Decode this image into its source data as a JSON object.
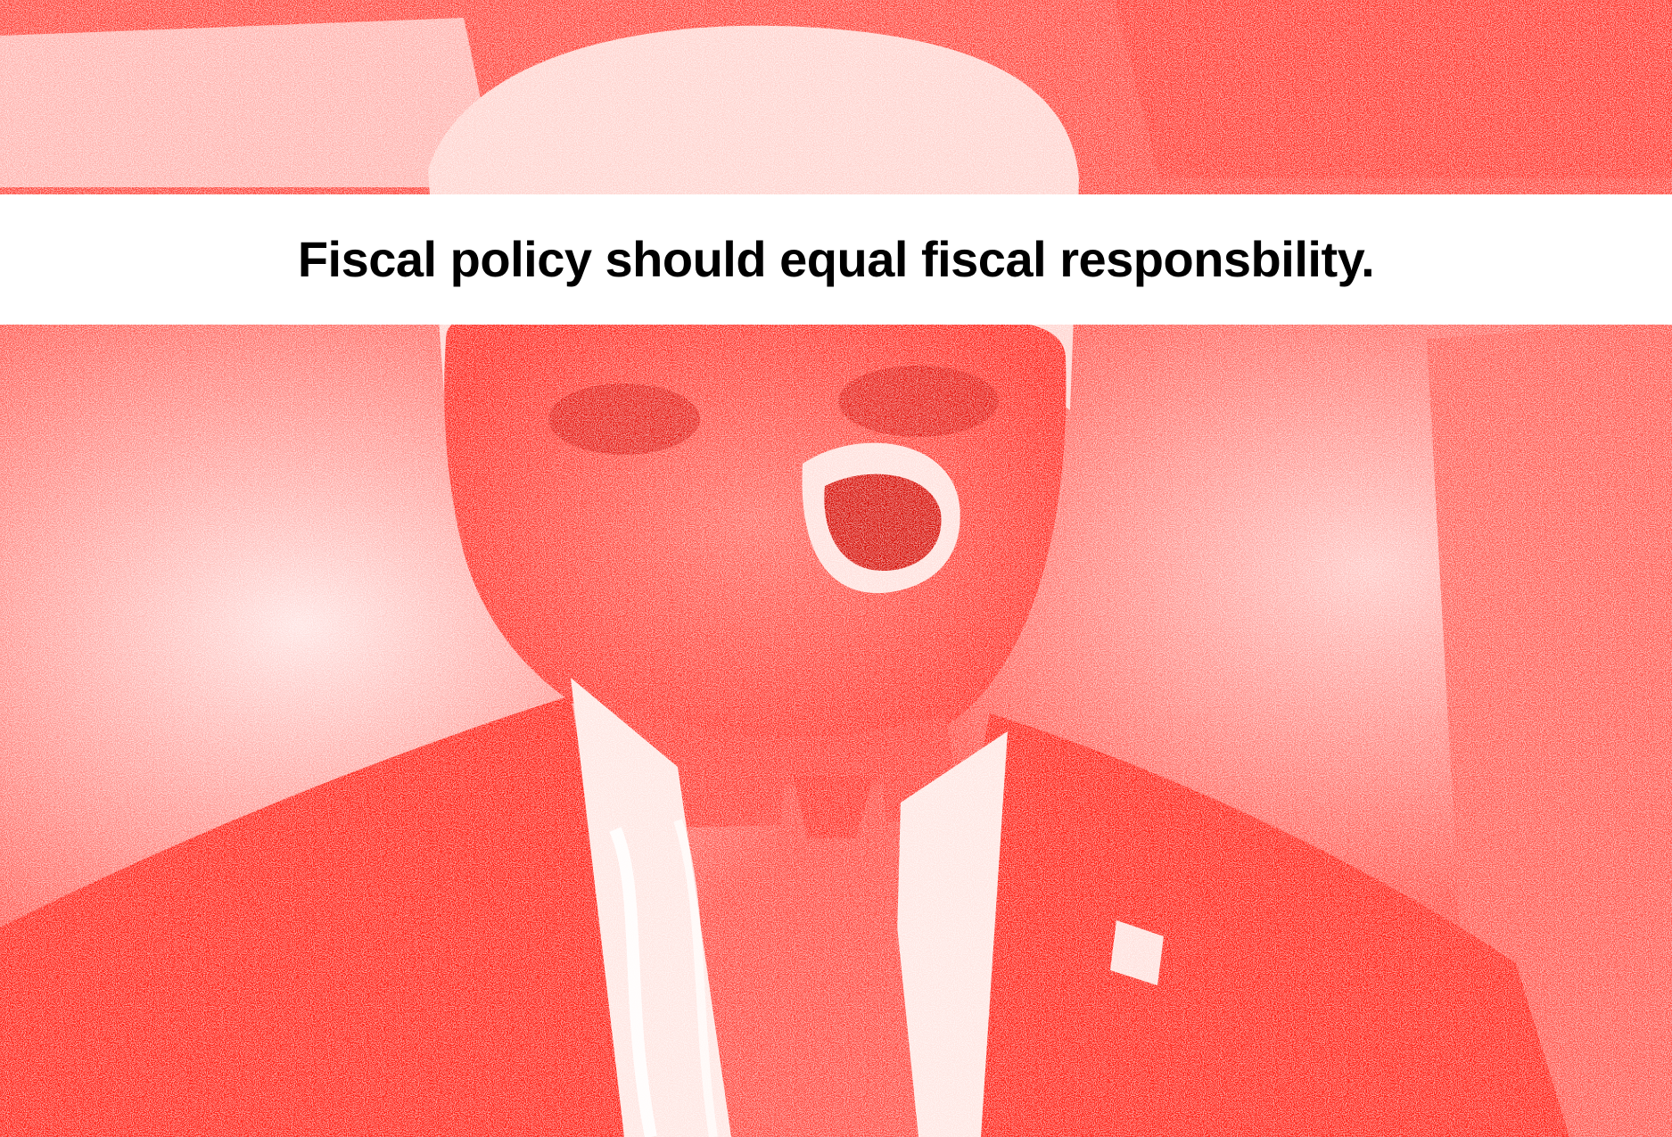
{
  "colors": {
    "ink": "#ff1a10",
    "paper": "#ffffff",
    "caption_text": "#000000"
  },
  "caption": {
    "text": "Fiscal policy should equal fiscal responsbility."
  }
}
